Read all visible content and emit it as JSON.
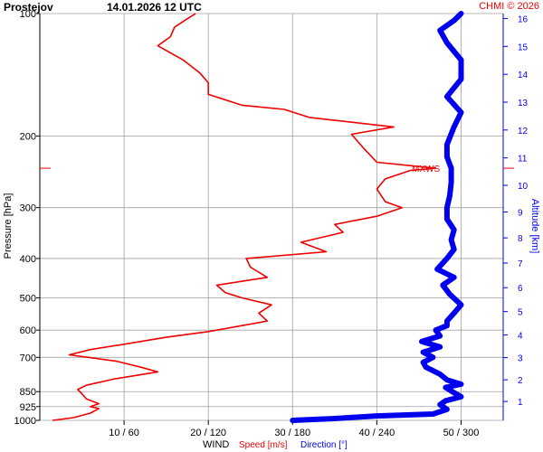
{
  "header": {
    "station": "Prostejov",
    "datetime": "14.01.2026 12 UTC",
    "credit": "CHMI © 2026"
  },
  "axes": {
    "left_label": "Pressure [hPa]",
    "right_label": "Altitude [km]",
    "bottom_prefix": "WIND",
    "bottom_speed": "Speed [m/s]",
    "bottom_direction": "Direction [°]",
    "maxws_label": "MXWS"
  },
  "colors": {
    "speed": "#ee0000",
    "direction": "#0000ee",
    "grid": "#a0a0a0",
    "axis": "#000000"
  },
  "chart_data": {
    "type": "line",
    "y_scale": "log-pressure",
    "ylim_hpa": [
      1000,
      100
    ],
    "pressure_ticks": [
      "100",
      "200",
      "300",
      "400",
      "500",
      "600",
      "700",
      "850",
      "925",
      "1000"
    ],
    "pressure_tick_values": [
      100,
      200,
      300,
      400,
      500,
      600,
      700,
      850,
      925,
      1000
    ],
    "altitude_ticks": [
      "1",
      "2",
      "3",
      "4",
      "5",
      "6",
      "7",
      "8",
      "9",
      "10",
      "11",
      "12",
      "13",
      "14",
      "15",
      "16"
    ],
    "x_ticks": [
      "10 / 60",
      "20 / 120",
      "30 / 180",
      "40 / 240",
      "50 / 300"
    ],
    "x_tick_speed_values": [
      10,
      20,
      30,
      40,
      50
    ],
    "x_tick_direction_values": [
      60,
      120,
      180,
      240,
      300
    ],
    "xlim_speed": [
      0,
      55
    ],
    "grid": true,
    "maxws_pressure": 240,
    "series": [
      {
        "name": "Speed [m/s]",
        "units": "m/s",
        "points": [
          [
            1000,
            1.5
          ],
          [
            985,
            4.0
          ],
          [
            960,
            6.0
          ],
          [
            935,
            7.0
          ],
          [
            925,
            6.0
          ],
          [
            910,
            7.0
          ],
          [
            885,
            5.5
          ],
          [
            860,
            5.0
          ],
          [
            840,
            4.5
          ],
          [
            820,
            5.5
          ],
          [
            790,
            9.0
          ],
          [
            760,
            14.0
          ],
          [
            740,
            12.0
          ],
          [
            715,
            9.0
          ],
          [
            690,
            3.5
          ],
          [
            670,
            6.0
          ],
          [
            650,
            10.0
          ],
          [
            625,
            15.0
          ],
          [
            605,
            20.0
          ],
          [
            585,
            24.0
          ],
          [
            570,
            27.0
          ],
          [
            545,
            26.0
          ],
          [
            520,
            27.5
          ],
          [
            500,
            24.0
          ],
          [
            485,
            22.0
          ],
          [
            465,
            21.0
          ],
          [
            445,
            27.0
          ],
          [
            420,
            25.0
          ],
          [
            400,
            24.5
          ],
          [
            385,
            34.0
          ],
          [
            365,
            31.0
          ],
          [
            345,
            36.0
          ],
          [
            330,
            35.0
          ],
          [
            315,
            40.0
          ],
          [
            300,
            43.0
          ],
          [
            290,
            41.0
          ],
          [
            270,
            40.0
          ],
          [
            255,
            41.0
          ],
          [
            243,
            44.0
          ],
          [
            240,
            47.0
          ],
          [
            232,
            40.0
          ],
          [
            215,
            38.5
          ],
          [
            198,
            37.0
          ],
          [
            190,
            42.0
          ],
          [
            180,
            32.0
          ],
          [
            172,
            29.0
          ],
          [
            168,
            24.0
          ],
          [
            158,
            20.0
          ],
          [
            148,
            20.0
          ],
          [
            140,
            19.0
          ],
          [
            130,
            17.0
          ],
          [
            120,
            14.0
          ],
          [
            114,
            15.5
          ],
          [
            108,
            16.0
          ],
          [
            103,
            17.5
          ],
          [
            100,
            18.5
          ]
        ]
      },
      {
        "name": "Direction [°]",
        "units": "deg",
        "points": [
          [
            1000,
            180
          ],
          [
            990,
            210
          ],
          [
            975,
            240
          ],
          [
            965,
            280
          ],
          [
            940,
            290
          ],
          [
            915,
            285
          ],
          [
            895,
            289
          ],
          [
            875,
            300
          ],
          [
            855,
            295
          ],
          [
            830,
            289
          ],
          [
            815,
            300
          ],
          [
            795,
            290
          ],
          [
            770,
            285
          ],
          [
            740,
            275
          ],
          [
            720,
            273
          ],
          [
            700,
            280
          ],
          [
            680,
            273
          ],
          [
            660,
            285
          ],
          [
            640,
            272
          ],
          [
            620,
            285
          ],
          [
            600,
            282
          ],
          [
            585,
            290
          ],
          [
            570,
            290
          ],
          [
            545,
            295
          ],
          [
            520,
            300
          ],
          [
            490,
            292
          ],
          [
            465,
            287
          ],
          [
            445,
            295
          ],
          [
            425,
            283
          ],
          [
            400,
            290
          ],
          [
            380,
            295
          ],
          [
            360,
            293
          ],
          [
            340,
            295
          ],
          [
            320,
            290
          ],
          [
            300,
            290
          ],
          [
            280,
            292
          ],
          [
            260,
            293
          ],
          [
            240,
            293
          ],
          [
            225,
            290
          ],
          [
            210,
            290
          ],
          [
            190,
            295
          ],
          [
            175,
            300
          ],
          [
            160,
            290
          ],
          [
            145,
            300
          ],
          [
            130,
            300
          ],
          [
            118,
            290
          ],
          [
            110,
            285
          ],
          [
            104,
            295
          ],
          [
            100,
            300
          ]
        ]
      }
    ]
  }
}
